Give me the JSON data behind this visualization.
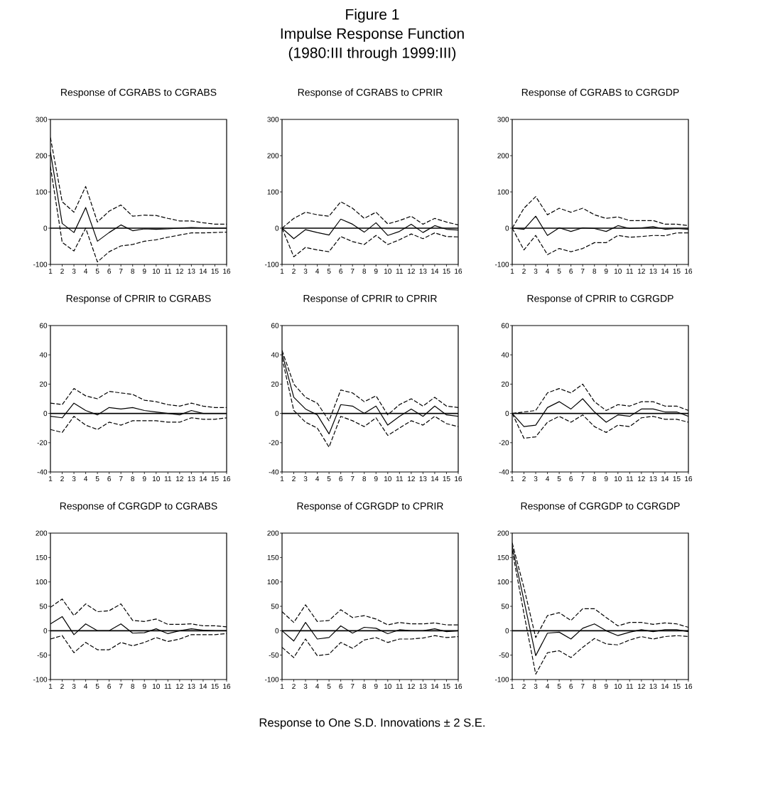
{
  "chart_data": [
    {
      "type": "other",
      "title": "Figure 1",
      "subtitle": "Impulse Response Function",
      "annotations": [
        "(1980:III through 1999:III)",
        "Response to One S.D. Innovations ± 2 S.E."
      ]
    },
    {
      "type": "line",
      "title": "Response of CGRABS to CGRABS",
      "x": [
        1,
        2,
        3,
        4,
        5,
        6,
        7,
        8,
        9,
        10,
        11,
        12,
        13,
        14,
        15,
        16
      ],
      "xlim": [
        1,
        16
      ],
      "xticks": [
        1,
        2,
        3,
        4,
        5,
        6,
        7,
        8,
        9,
        10,
        11,
        12,
        13,
        14,
        15,
        16
      ],
      "ylim": [
        -100,
        300
      ],
      "yticks": [
        -100,
        0,
        100,
        200,
        300
      ],
      "ref_lines": [
        {
          "axis": "y",
          "value": 0
        }
      ],
      "series": [
        {
          "color": "#000000",
          "line_style": "solid",
          "values": [
            210,
            13,
            -12,
            57,
            -36,
            -12,
            9,
            -7,
            -2,
            -3,
            -2,
            0,
            2,
            1,
            0,
            0
          ]
        },
        {
          "color": "#000000",
          "line_style": "dashed",
          "values": [
            250,
            73,
            44,
            115,
            17,
            47,
            64,
            33,
            36,
            35,
            27,
            20,
            20,
            15,
            11,
            11
          ]
        },
        {
          "color": "#000000",
          "line_style": "dashed",
          "values": [
            170,
            -39,
            -63,
            0,
            -93,
            -65,
            -49,
            -45,
            -36,
            -32,
            -25,
            -19,
            -13,
            -13,
            -12,
            -11
          ]
        }
      ]
    },
    {
      "type": "line",
      "title": "Response of CGRABS to CPRIR",
      "x": [
        1,
        2,
        3,
        4,
        5,
        6,
        7,
        8,
        9,
        10,
        11,
        12,
        13,
        14,
        15,
        16
      ],
      "xlim": [
        1,
        16
      ],
      "xticks": [
        1,
        2,
        3,
        4,
        5,
        6,
        7,
        8,
        9,
        10,
        11,
        12,
        13,
        14,
        15,
        16
      ],
      "ylim": [
        -100,
        300
      ],
      "yticks": [
        -100,
        0,
        100,
        200,
        300
      ],
      "ref_lines": [
        {
          "axis": "y",
          "value": 0
        }
      ],
      "series": [
        {
          "color": "#000000",
          "line_style": "solid",
          "values": [
            0,
            -29,
            -4,
            -12,
            -19,
            25,
            11,
            -11,
            15,
            -20,
            -9,
            11,
            -12,
            7,
            -3,
            -5
          ]
        },
        {
          "color": "#000000",
          "line_style": "dashed",
          "values": [
            0,
            27,
            44,
            37,
            33,
            73,
            55,
            27,
            44,
            12,
            21,
            33,
            11,
            27,
            17,
            9
          ]
        },
        {
          "color": "#000000",
          "line_style": "dashed",
          "values": [
            0,
            -79,
            -53,
            -60,
            -65,
            -23,
            -37,
            -45,
            -20,
            -45,
            -32,
            -16,
            -29,
            -13,
            -23,
            -24
          ]
        }
      ]
    },
    {
      "type": "line",
      "title": "Response of CGRABS to CGRGDP",
      "x": [
        1,
        2,
        3,
        4,
        5,
        6,
        7,
        8,
        9,
        10,
        11,
        12,
        13,
        14,
        15,
        16
      ],
      "xlim": [
        1,
        16
      ],
      "xticks": [
        1,
        2,
        3,
        4,
        5,
        6,
        7,
        8,
        9,
        10,
        11,
        12,
        13,
        14,
        15,
        16
      ],
      "ylim": [
        -100,
        300
      ],
      "yticks": [
        -100,
        0,
        100,
        200,
        300
      ],
      "ref_lines": [
        {
          "axis": "y",
          "value": 0
        }
      ],
      "series": [
        {
          "color": "#000000",
          "line_style": "solid",
          "values": [
            0,
            -3,
            33,
            -20,
            1,
            -9,
            1,
            -1,
            -9,
            7,
            -1,
            1,
            4,
            -3,
            -1,
            -3
          ]
        },
        {
          "color": "#000000",
          "line_style": "dashed",
          "values": [
            0,
            55,
            87,
            37,
            55,
            44,
            55,
            37,
            27,
            31,
            21,
            21,
            21,
            11,
            11,
            7
          ]
        },
        {
          "color": "#000000",
          "line_style": "dashed",
          "values": [
            0,
            -60,
            -20,
            -73,
            -56,
            -65,
            -56,
            -40,
            -40,
            -20,
            -25,
            -23,
            -20,
            -21,
            -13,
            -13
          ]
        }
      ]
    },
    {
      "type": "line",
      "title": "Response of CPRIR to CGRABS",
      "x": [
        1,
        2,
        3,
        4,
        5,
        6,
        7,
        8,
        9,
        10,
        11,
        12,
        13,
        14,
        15,
        16
      ],
      "xlim": [
        1,
        16
      ],
      "xticks": [
        1,
        2,
        3,
        4,
        5,
        6,
        7,
        8,
        9,
        10,
        11,
        12,
        13,
        14,
        15,
        16
      ],
      "ylim": [
        -40,
        60
      ],
      "yticks": [
        -40,
        -20,
        0,
        20,
        40,
        60
      ],
      "ref_lines": [
        {
          "axis": "y",
          "value": 0
        }
      ],
      "series": [
        {
          "color": "#000000",
          "line_style": "solid",
          "values": [
            -2,
            -3,
            7,
            2,
            -1,
            4,
            3,
            4,
            2,
            1,
            0,
            -1,
            2,
            0,
            0,
            0
          ]
        },
        {
          "color": "#000000",
          "line_style": "dashed",
          "values": [
            7,
            6,
            17,
            12,
            10,
            15,
            14,
            13,
            9,
            8,
            6,
            5,
            7,
            5,
            4,
            4
          ]
        },
        {
          "color": "#000000",
          "line_style": "dashed",
          "values": [
            -11,
            -13,
            -2,
            -8,
            -11,
            -6,
            -8,
            -5,
            -5,
            -5,
            -6,
            -6,
            -3,
            -4,
            -4,
            -3
          ]
        }
      ]
    },
    {
      "type": "line",
      "title": "Response of CPRIR to CPRIR",
      "x": [
        1,
        2,
        3,
        4,
        5,
        6,
        7,
        8,
        9,
        10,
        11,
        12,
        13,
        14,
        15,
        16
      ],
      "xlim": [
        1,
        16
      ],
      "xticks": [
        1,
        2,
        3,
        4,
        5,
        6,
        7,
        8,
        9,
        10,
        11,
        12,
        13,
        14,
        15,
        16
      ],
      "ylim": [
        -40,
        60
      ],
      "yticks": [
        -40,
        -20,
        0,
        20,
        40,
        60
      ],
      "ref_lines": [
        {
          "axis": "y",
          "value": 0
        }
      ],
      "series": [
        {
          "color": "#000000",
          "line_style": "solid",
          "values": [
            41,
            11,
            3,
            -1,
            -14,
            6,
            5,
            0,
            5,
            -8,
            -2,
            3,
            -2,
            5,
            -1,
            -2
          ]
        },
        {
          "color": "#000000",
          "line_style": "dashed",
          "values": [
            43,
            20,
            11,
            7,
            -5,
            16,
            14,
            8,
            12,
            -1,
            6,
            10,
            5,
            11,
            5,
            4
          ]
        },
        {
          "color": "#000000",
          "line_style": "dashed",
          "values": [
            38,
            2,
            -6,
            -10,
            -23,
            -2,
            -5,
            -9,
            -3,
            -15,
            -10,
            -5,
            -8,
            -2,
            -7,
            -9
          ]
        }
      ]
    },
    {
      "type": "line",
      "title": "Response of CPRIR to CGRGDP",
      "x": [
        1,
        2,
        3,
        4,
        5,
        6,
        7,
        8,
        9,
        10,
        11,
        12,
        13,
        14,
        15,
        16
      ],
      "xlim": [
        1,
        16
      ],
      "xticks": [
        1,
        2,
        3,
        4,
        5,
        6,
        7,
        8,
        9,
        10,
        11,
        12,
        13,
        14,
        15,
        16
      ],
      "ylim": [
        -40,
        60
      ],
      "yticks": [
        -40,
        -20,
        0,
        20,
        40,
        60
      ],
      "ref_lines": [
        {
          "axis": "y",
          "value": 0
        }
      ],
      "series": [
        {
          "color": "#000000",
          "line_style": "solid",
          "values": [
            0,
            -9,
            -8,
            4,
            8,
            3,
            10,
            1,
            -6,
            -1,
            -2,
            3,
            3,
            1,
            1,
            -2
          ]
        },
        {
          "color": "#000000",
          "line_style": "dashed",
          "values": [
            0,
            1,
            2,
            14,
            17,
            14,
            20,
            8,
            2,
            6,
            5,
            8,
            8,
            5,
            5,
            2
          ]
        },
        {
          "color": "#000000",
          "line_style": "dashed",
          "values": [
            0,
            -17,
            -16,
            -6,
            -2,
            -6,
            -1,
            -9,
            -13,
            -8,
            -9,
            -3,
            -2,
            -4,
            -4,
            -6
          ]
        }
      ]
    },
    {
      "type": "line",
      "title": "Response of CGRGDP to CGRABS",
      "x": [
        1,
        2,
        3,
        4,
        5,
        6,
        7,
        8,
        9,
        10,
        11,
        12,
        13,
        14,
        15,
        16
      ],
      "xlim": [
        1,
        16
      ],
      "xticks": [
        1,
        2,
        3,
        4,
        5,
        6,
        7,
        8,
        9,
        10,
        11,
        12,
        13,
        14,
        15,
        16
      ],
      "ylim": [
        -100,
        200
      ],
      "yticks": [
        -100,
        -50,
        0,
        50,
        100,
        150,
        200
      ],
      "ref_lines": [
        {
          "axis": "y",
          "value": 0
        }
      ],
      "series": [
        {
          "color": "#000000",
          "line_style": "solid",
          "values": [
            14,
            29,
            -8,
            14,
            0,
            0,
            14,
            -5,
            -4,
            4,
            -6,
            0,
            4,
            1,
            0,
            0
          ]
        },
        {
          "color": "#000000",
          "line_style": "dashed",
          "values": [
            48,
            65,
            31,
            55,
            39,
            41,
            55,
            21,
            19,
            24,
            13,
            13,
            14,
            10,
            10,
            8
          ]
        },
        {
          "color": "#000000",
          "line_style": "dashed",
          "values": [
            -17,
            -10,
            -45,
            -24,
            -39,
            -39,
            -24,
            -31,
            -24,
            -14,
            -22,
            -17,
            -8,
            -8,
            -8,
            -6
          ]
        }
      ]
    },
    {
      "type": "line",
      "title": "Response of CGRGDP to CPRIR",
      "x": [
        1,
        2,
        3,
        4,
        5,
        6,
        7,
        8,
        9,
        10,
        11,
        12,
        13,
        14,
        15,
        16
      ],
      "xlim": [
        1,
        16
      ],
      "xticks": [
        1,
        2,
        3,
        4,
        5,
        6,
        7,
        8,
        9,
        10,
        11,
        12,
        13,
        14,
        15,
        16
      ],
      "ylim": [
        -100,
        200
      ],
      "yticks": [
        -100,
        -50,
        0,
        50,
        100,
        150,
        200
      ],
      "ref_lines": [
        {
          "axis": "y",
          "value": 0
        }
      ],
      "series": [
        {
          "color": "#000000",
          "line_style": "solid",
          "values": [
            0,
            -21,
            17,
            -17,
            -14,
            10,
            -5,
            7,
            5,
            -6,
            2,
            0,
            0,
            4,
            -2,
            0
          ]
        },
        {
          "color": "#000000",
          "line_style": "dashed",
          "values": [
            39,
            17,
            53,
            19,
            21,
            43,
            27,
            31,
            24,
            12,
            17,
            14,
            14,
            16,
            12,
            12
          ]
        },
        {
          "color": "#000000",
          "line_style": "dashed",
          "values": [
            -34,
            -55,
            -17,
            -51,
            -48,
            -24,
            -36,
            -19,
            -14,
            -24,
            -17,
            -17,
            -15,
            -10,
            -14,
            -12
          ]
        }
      ]
    },
    {
      "type": "line",
      "title": "Response of CGRGDP to CGRGDP",
      "x": [
        1,
        2,
        3,
        4,
        5,
        6,
        7,
        8,
        9,
        10,
        11,
        12,
        13,
        14,
        15,
        16
      ],
      "xlim": [
        1,
        16
      ],
      "xticks": [
        1,
        2,
        3,
        4,
        5,
        6,
        7,
        8,
        9,
        10,
        11,
        12,
        13,
        14,
        15,
        16
      ],
      "ylim": [
        -100,
        200
      ],
      "yticks": [
        -100,
        -50,
        0,
        50,
        100,
        150,
        200
      ],
      "ref_lines": [
        {
          "axis": "y",
          "value": 0
        }
      ],
      "series": [
        {
          "color": "#000000",
          "line_style": "solid",
          "values": [
            173,
            62,
            -51,
            -5,
            -3,
            -17,
            5,
            14,
            0,
            -10,
            -3,
            2,
            -2,
            2,
            2,
            -2
          ]
        },
        {
          "color": "#000000",
          "line_style": "dashed",
          "values": [
            180,
            88,
            -14,
            31,
            37,
            21,
            45,
            45,
            27,
            10,
            17,
            17,
            13,
            16,
            14,
            7
          ]
        },
        {
          "color": "#000000",
          "line_style": "dashed",
          "values": [
            165,
            35,
            -89,
            -45,
            -41,
            -55,
            -34,
            -16,
            -27,
            -29,
            -19,
            -12,
            -17,
            -12,
            -10,
            -12
          ]
        }
      ]
    }
  ]
}
